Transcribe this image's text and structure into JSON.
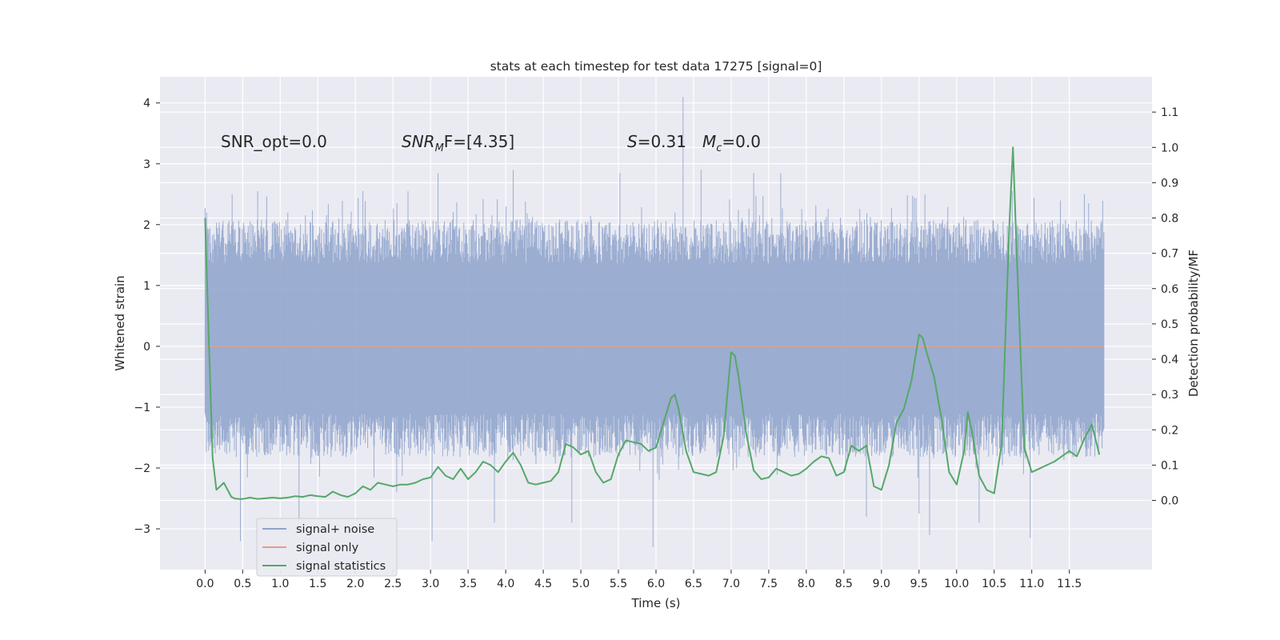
{
  "chart_data": {
    "type": "line",
    "title": "stats at each timestep for test data 17275 [signal=0]",
    "xlabel": "Time (s)",
    "ylabel": "Whitened strain",
    "y2label": "Detection probability/MF",
    "xlim": [
      -0.6,
      12.6
    ],
    "ylim": [
      -3.67,
      4.43
    ],
    "y2lim": [
      -0.196,
      1.2
    ],
    "xticks": [
      0.0,
      0.5,
      1.0,
      1.5,
      2.0,
      2.5,
      3.0,
      3.5,
      4.0,
      4.5,
      5.0,
      5.5,
      6.0,
      6.5,
      7.0,
      7.5,
      8.0,
      8.5,
      9.0,
      9.5,
      10.0,
      10.5,
      11.0,
      11.5
    ],
    "yticks": [
      -3,
      -2,
      -1,
      0,
      1,
      2,
      3,
      4
    ],
    "y2ticks": [
      0.0,
      0.1,
      0.2,
      0.3,
      0.4,
      0.5,
      0.6,
      0.7,
      0.8,
      0.9,
      1.0,
      1.1
    ],
    "annotations": {
      "snr_opt": "SNR_opt=0.0",
      "snr_mf_base": "SNR",
      "snr_mf_sub": "M",
      "snr_mf_rest": "F=[4.35]",
      "s_label": "S",
      "s_value": "=0.31",
      "mc_base": "M",
      "mc_sub": "c",
      "mc_value": "=0.0"
    },
    "legend": {
      "position": "lower-left",
      "entries": [
        {
          "label": "signal+ noise",
          "color": "#8fa4cc"
        },
        {
          "label": "signal only",
          "color": "#e59e85"
        },
        {
          "label": "signal statistics",
          "color": "#55a868"
        }
      ]
    },
    "series": [
      {
        "name": "signal+ noise",
        "axis": "left",
        "color": "#8fa4cc",
        "x_start": 0.0,
        "x_end": 11.96,
        "typical_range": [
          -1.3,
          1.6
        ],
        "spikes": [
          {
            "x": 0.02,
            "y": 2.2
          },
          {
            "x": 0.36,
            "y": 2.5
          },
          {
            "x": 0.47,
            "y": -3.2
          },
          {
            "x": 0.7,
            "y": 2.55
          },
          {
            "x": 1.25,
            "y": -2.85
          },
          {
            "x": 2.1,
            "y": 2.55
          },
          {
            "x": 2.55,
            "y": -2.4
          },
          {
            "x": 2.7,
            "y": 2.55
          },
          {
            "x": 3.02,
            "y": -3.2
          },
          {
            "x": 3.1,
            "y": 2.85
          },
          {
            "x": 3.85,
            "y": -2.9
          },
          {
            "x": 4.1,
            "y": 2.9
          },
          {
            "x": 4.88,
            "y": -2.9
          },
          {
            "x": 5.52,
            "y": 2.85
          },
          {
            "x": 5.96,
            "y": -3.3
          },
          {
            "x": 6.36,
            "y": 4.1
          },
          {
            "x": 6.6,
            "y": 2.9
          },
          {
            "x": 7.3,
            "y": 2.85
          },
          {
            "x": 7.66,
            "y": 2.85
          },
          {
            "x": 8.8,
            "y": -2.8
          },
          {
            "x": 9.5,
            "y": -2.75
          },
          {
            "x": 9.64,
            "y": -3.1
          },
          {
            "x": 10.3,
            "y": -2.9
          },
          {
            "x": 10.74,
            "y": 2.55
          },
          {
            "x": 10.98,
            "y": -3.15
          },
          {
            "x": 11.7,
            "y": 2.5
          }
        ]
      },
      {
        "name": "signal only",
        "axis": "left",
        "color": "#e59e85",
        "x": [
          0.0,
          11.96
        ],
        "y": [
          0.0,
          0.0
        ]
      },
      {
        "name": "signal statistics",
        "axis": "right",
        "color": "#55a868",
        "x": [
          0.0,
          0.05,
          0.1,
          0.15,
          0.2,
          0.25,
          0.3,
          0.35,
          0.4,
          0.45,
          0.5,
          0.6,
          0.7,
          0.8,
          0.9,
          1.0,
          1.1,
          1.2,
          1.3,
          1.4,
          1.5,
          1.6,
          1.7,
          1.8,
          1.9,
          2.0,
          2.1,
          2.2,
          2.3,
          2.4,
          2.5,
          2.6,
          2.7,
          2.8,
          2.9,
          3.0,
          3.1,
          3.2,
          3.3,
          3.4,
          3.5,
          3.6,
          3.7,
          3.8,
          3.9,
          4.0,
          4.1,
          4.2,
          4.3,
          4.4,
          4.5,
          4.6,
          4.7,
          4.8,
          4.9,
          5.0,
          5.1,
          5.2,
          5.3,
          5.4,
          5.5,
          5.6,
          5.7,
          5.8,
          5.9,
          6.0,
          6.1,
          6.2,
          6.25,
          6.3,
          6.4,
          6.5,
          6.6,
          6.7,
          6.8,
          6.9,
          7.0,
          7.05,
          7.1,
          7.2,
          7.3,
          7.4,
          7.5,
          7.6,
          7.7,
          7.8,
          7.9,
          8.0,
          8.1,
          8.2,
          8.3,
          8.4,
          8.5,
          8.6,
          8.7,
          8.8,
          8.9,
          9.0,
          9.1,
          9.2,
          9.3,
          9.4,
          9.5,
          9.55,
          9.6,
          9.7,
          9.8,
          9.9,
          10.0,
          10.1,
          10.15,
          10.2,
          10.3,
          10.4,
          10.5,
          10.6,
          10.7,
          10.75,
          10.8,
          10.9,
          11.0,
          11.1,
          11.2,
          11.3,
          11.4,
          11.5,
          11.6,
          11.7,
          11.8,
          11.9
        ],
        "y": [
          0.8,
          0.45,
          0.12,
          0.03,
          0.04,
          0.05,
          0.03,
          0.01,
          0.005,
          0.004,
          0.004,
          0.008,
          0.004,
          0.006,
          0.008,
          0.006,
          0.008,
          0.012,
          0.01,
          0.015,
          0.012,
          0.01,
          0.025,
          0.015,
          0.01,
          0.02,
          0.04,
          0.03,
          0.05,
          0.045,
          0.04,
          0.045,
          0.045,
          0.05,
          0.06,
          0.065,
          0.095,
          0.07,
          0.06,
          0.09,
          0.06,
          0.08,
          0.11,
          0.1,
          0.08,
          0.11,
          0.135,
          0.1,
          0.05,
          0.045,
          0.05,
          0.055,
          0.08,
          0.16,
          0.15,
          0.13,
          0.14,
          0.08,
          0.05,
          0.06,
          0.13,
          0.17,
          0.165,
          0.16,
          0.14,
          0.15,
          0.22,
          0.29,
          0.3,
          0.26,
          0.14,
          0.08,
          0.075,
          0.07,
          0.08,
          0.18,
          0.42,
          0.41,
          0.35,
          0.19,
          0.085,
          0.06,
          0.065,
          0.09,
          0.08,
          0.07,
          0.075,
          0.09,
          0.11,
          0.125,
          0.12,
          0.07,
          0.08,
          0.155,
          0.14,
          0.155,
          0.04,
          0.03,
          0.1,
          0.22,
          0.26,
          0.34,
          0.47,
          0.46,
          0.42,
          0.35,
          0.23,
          0.08,
          0.045,
          0.14,
          0.25,
          0.2,
          0.07,
          0.03,
          0.02,
          0.16,
          0.77,
          1.0,
          0.7,
          0.15,
          0.08,
          0.09,
          0.1,
          0.11,
          0.125,
          0.14,
          0.125,
          0.175,
          0.215,
          0.13
        ]
      }
    ]
  }
}
